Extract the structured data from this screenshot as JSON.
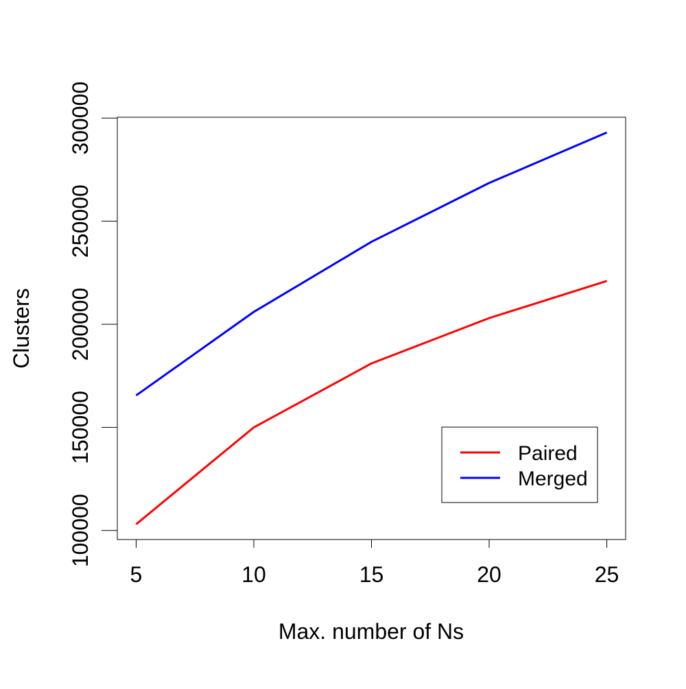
{
  "chart_data": {
    "type": "line",
    "title": "",
    "xlabel": "Max. number of Ns",
    "ylabel": "Clusters",
    "x": [
      5,
      10,
      15,
      20,
      25
    ],
    "xticks": [
      5,
      10,
      15,
      20,
      25
    ],
    "xtick_labels": [
      "5",
      "10",
      "15",
      "20",
      "25"
    ],
    "yticks": [
      100000,
      150000,
      200000,
      250000,
      300000
    ],
    "ytick_labels": [
      "100000",
      "150000",
      "200000",
      "250000",
      "300000"
    ],
    "xlim": [
      4.2,
      25.8
    ],
    "ylim": [
      95600,
      300400
    ],
    "grid": false,
    "legend_position": "bottom-right",
    "series": [
      {
        "name": "Paired",
        "color": "#ff0000",
        "values": [
          103000,
          150000,
          181000,
          203000,
          221000
        ]
      },
      {
        "name": "Merged",
        "color": "#0000ff",
        "values": [
          165500,
          206000,
          240000,
          268500,
          293000
        ]
      }
    ]
  }
}
